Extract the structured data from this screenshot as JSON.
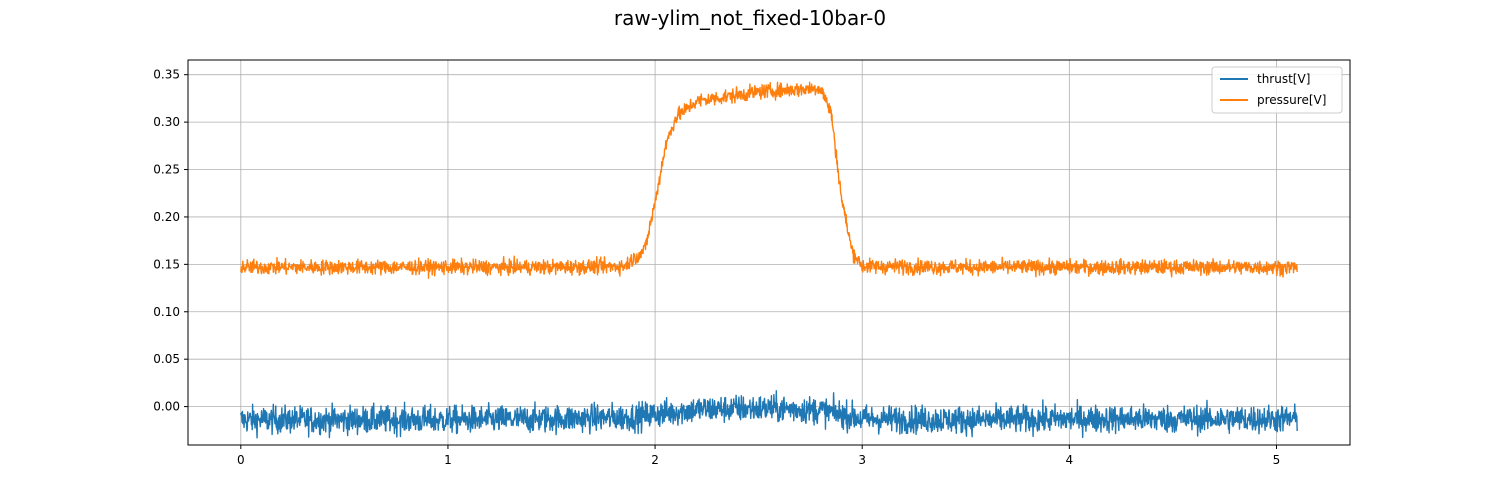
{
  "chart_data": {
    "type": "line",
    "title": "raw-ylim_not_fixed-10bar-0",
    "xlabel": "",
    "ylabel": "",
    "xlim": [
      -0.255,
      5.355
    ],
    "ylim": [
      -0.0405,
      0.3655
    ],
    "grid": true,
    "legend_position": "top-right",
    "x_ticks": [
      0,
      1,
      2,
      3,
      4,
      5
    ],
    "x_tick_labels": [
      "0",
      "1",
      "2",
      "3",
      "4",
      "5"
    ],
    "y_ticks": [
      0.0,
      0.05,
      0.1,
      0.15,
      0.2,
      0.25,
      0.3,
      0.35
    ],
    "y_tick_labels": [
      "0.00",
      "0.05",
      "0.10",
      "0.15",
      "0.20",
      "0.25",
      "0.30",
      "0.35"
    ],
    "x_range": [
      0,
      5.1
    ],
    "series": [
      {
        "name": "thrust[V]",
        "color": "#1f77b4",
        "noise_band": 0.013,
        "x": [
          0,
          0.5,
          1.0,
          1.5,
          1.9,
          2.0,
          2.2,
          2.4,
          2.6,
          2.8,
          2.9,
          3.0,
          3.5,
          4.0,
          4.5,
          5.1
        ],
        "y": [
          -0.014,
          -0.014,
          -0.014,
          -0.013,
          -0.011,
          -0.008,
          -0.003,
          -0.002,
          -0.002,
          -0.004,
          -0.008,
          -0.013,
          -0.014,
          -0.013,
          -0.013,
          -0.013
        ]
      },
      {
        "name": "pressure[V]",
        "color": "#ff7f0e",
        "noise_band": 0.007,
        "x": [
          0,
          0.5,
          1.0,
          1.5,
          1.85,
          1.95,
          2.0,
          2.05,
          2.1,
          2.2,
          2.5,
          2.8,
          2.85,
          2.9,
          2.95,
          3.0,
          3.5,
          4.0,
          4.5,
          5.1
        ],
        "y": [
          0.147,
          0.147,
          0.147,
          0.147,
          0.148,
          0.165,
          0.215,
          0.275,
          0.305,
          0.322,
          0.332,
          0.336,
          0.31,
          0.22,
          0.165,
          0.148,
          0.147,
          0.147,
          0.147,
          0.147
        ]
      }
    ]
  }
}
